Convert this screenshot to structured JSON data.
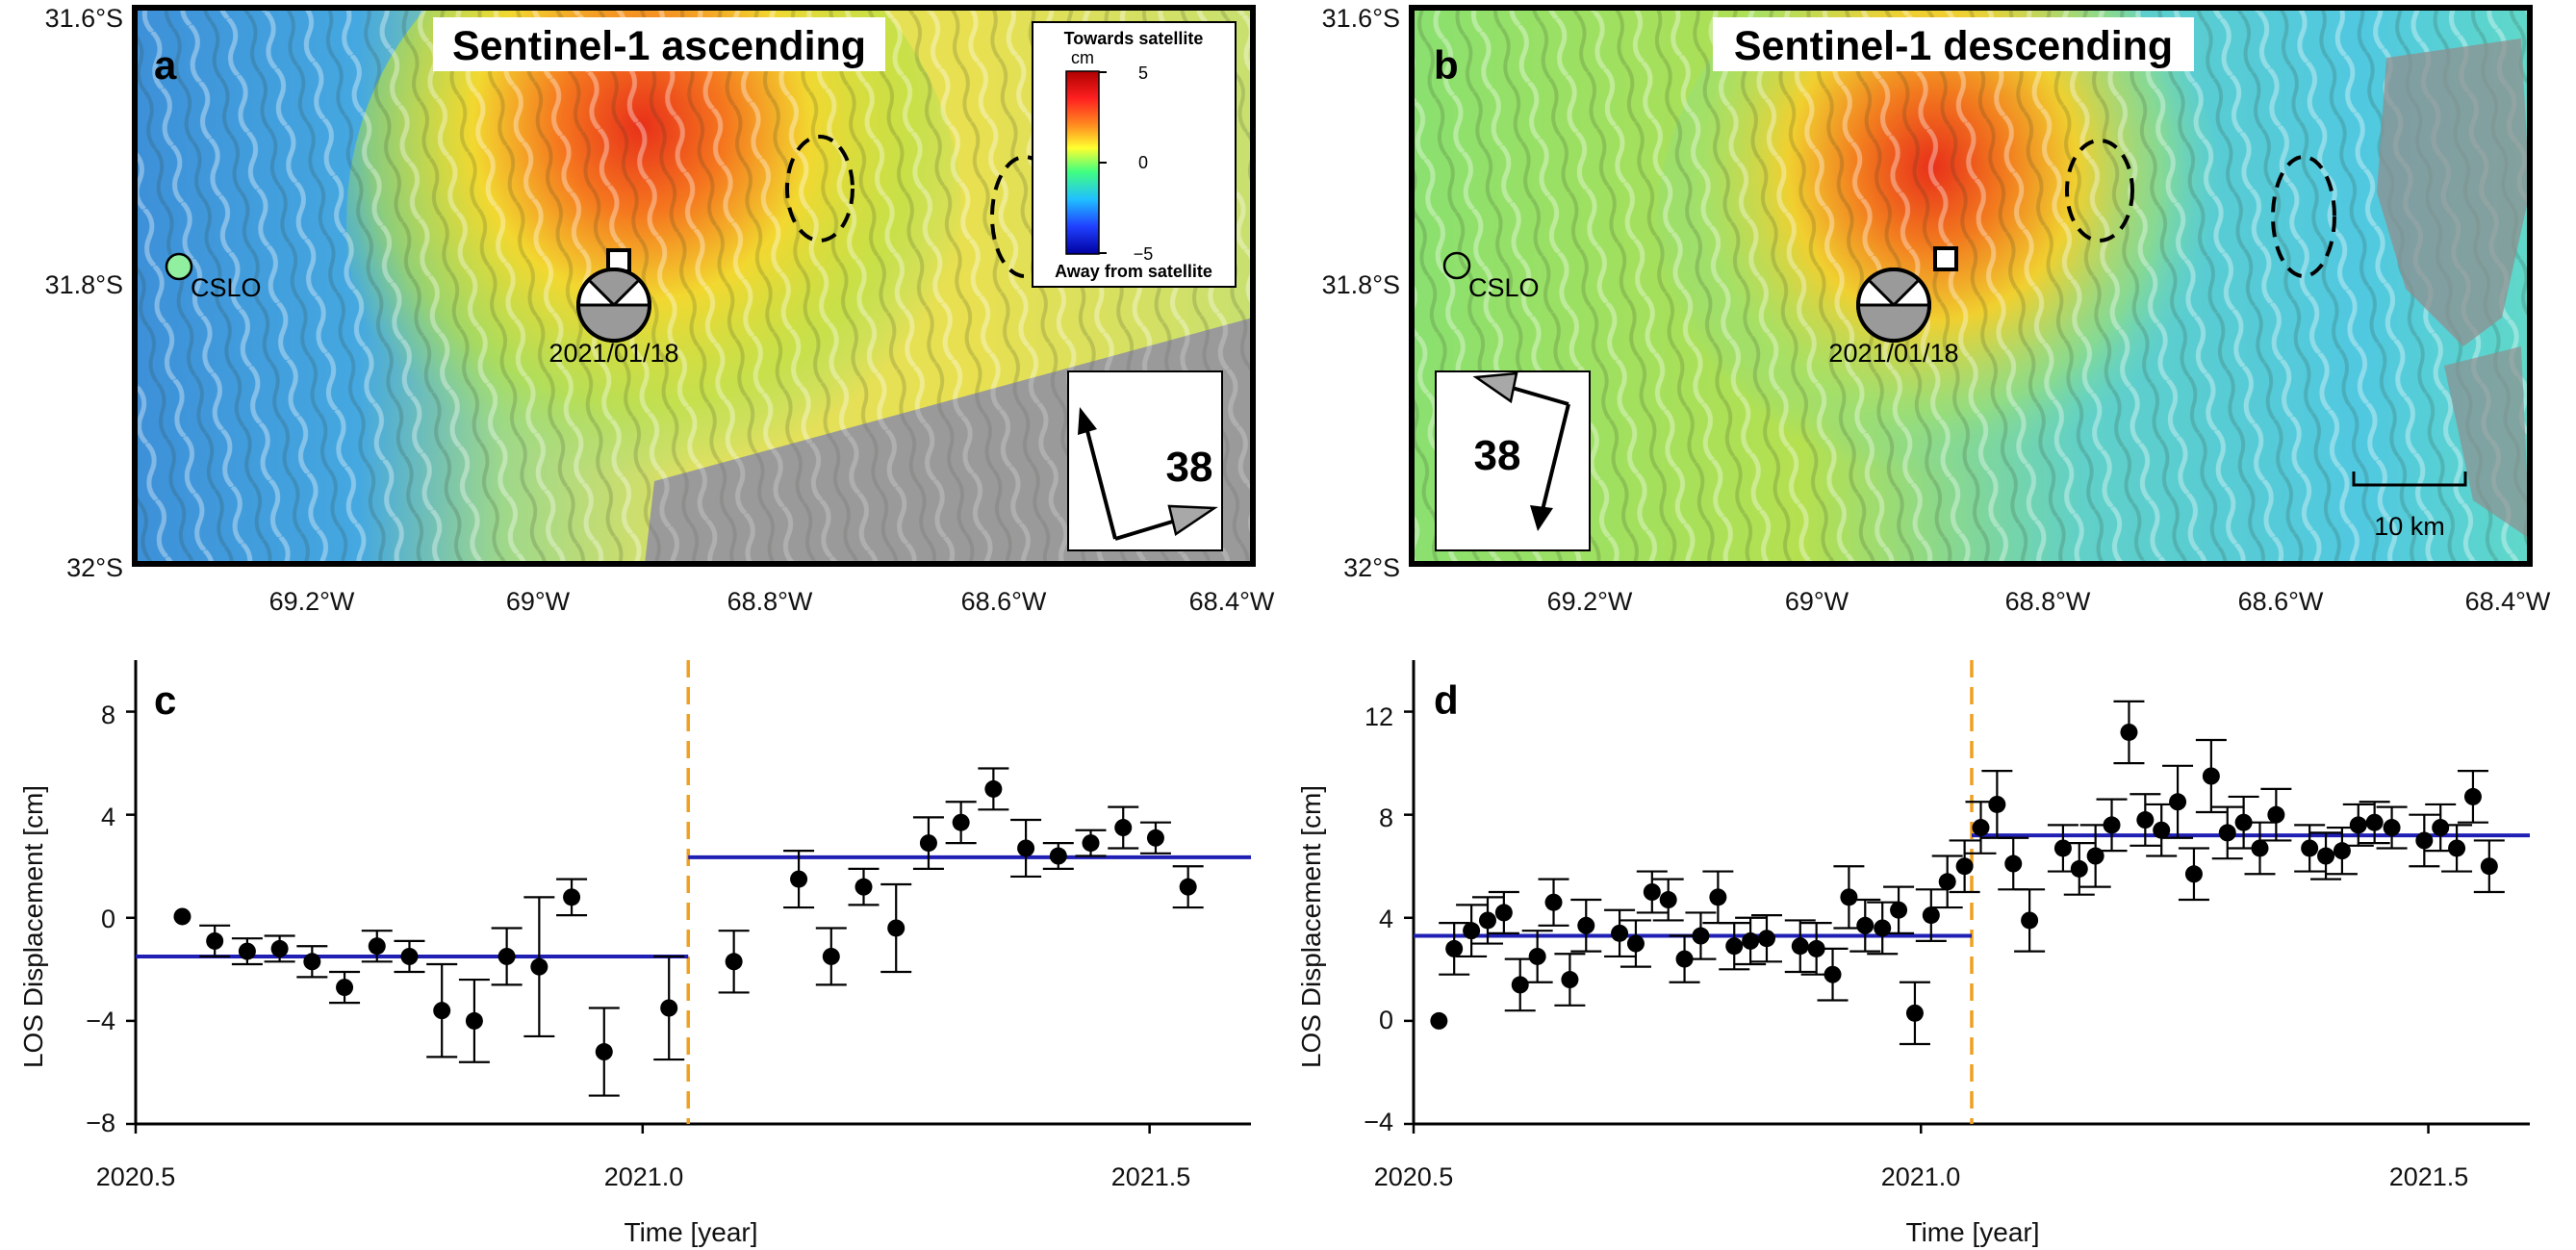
{
  "maps": [
    {
      "letter": "a",
      "title": "Sentinel-1 ascending",
      "station_label": "CSLO",
      "event_date": "2021/01/18",
      "heading_angle": "38",
      "lat_ticks": [
        "31.6°S",
        "31.8°S",
        "32°S"
      ],
      "lon_ticks": [
        "69.2°W",
        "69°W",
        "68.8°W",
        "68.6°W",
        "68.4°W"
      ],
      "colorbar": {
        "top_label": "Towards satellite",
        "unit": "cm",
        "bottom_label": "Away from satellite",
        "ticks": [
          "5",
          "0",
          "−5"
        ]
      }
    },
    {
      "letter": "b",
      "title": "Sentinel-1 descending",
      "station_label": "CSLO",
      "event_date": "2021/01/18",
      "heading_angle": "38",
      "lat_ticks": [
        "31.6°S",
        "31.8°S",
        "32°S"
      ],
      "lon_ticks": [
        "69.2°W",
        "69°W",
        "68.8°W",
        "68.6°W",
        "68.4°W"
      ],
      "scale_bar_label": "10 km"
    }
  ],
  "chart_data": [
    {
      "type": "scatter",
      "panel": "c",
      "xlabel": "Time [year]",
      "ylabel": "LOS Displacement [cm]",
      "xlim": [
        2020.5,
        2021.6
      ],
      "ylim": [
        -8,
        10
      ],
      "xticks": [
        "2020.5",
        "2021.0",
        "2021.5"
      ],
      "yticks": [
        "−8",
        "−4",
        "0",
        "4",
        "8"
      ],
      "event_time": 2021.045,
      "colors": {
        "points": "#000000",
        "fit": "#1f1fb4",
        "event": "#f0a020"
      },
      "points": [
        {
          "x": 2020.546,
          "y": 0.05,
          "err": 0
        },
        {
          "x": 2020.578,
          "y": -0.9,
          "err": 0.6
        },
        {
          "x": 2020.61,
          "y": -1.3,
          "err": 0.5
        },
        {
          "x": 2020.642,
          "y": -1.2,
          "err": 0.5
        },
        {
          "x": 2020.674,
          "y": -1.7,
          "err": 0.6
        },
        {
          "x": 2020.706,
          "y": -2.7,
          "err": 0.6
        },
        {
          "x": 2020.738,
          "y": -1.1,
          "err": 0.6
        },
        {
          "x": 2020.77,
          "y": -1.5,
          "err": 0.6
        },
        {
          "x": 2020.802,
          "y": -3.6,
          "err": 1.8
        },
        {
          "x": 2020.834,
          "y": -4.0,
          "err": 1.6
        },
        {
          "x": 2020.866,
          "y": -1.5,
          "err": 1.1
        },
        {
          "x": 2020.898,
          "y": -1.9,
          "err": 2.7
        },
        {
          "x": 2020.93,
          "y": 0.8,
          "err": 0.7
        },
        {
          "x": 2020.962,
          "y": -5.2,
          "err": 1.7
        },
        {
          "x": 2021.026,
          "y": -3.5,
          "err": 2.0
        },
        {
          "x": 2021.09,
          "y": -1.7,
          "err": 1.2
        },
        {
          "x": 2021.154,
          "y": 1.5,
          "err": 1.1
        },
        {
          "x": 2021.186,
          "y": -1.5,
          "err": 1.1
        },
        {
          "x": 2021.218,
          "y": 1.2,
          "err": 0.7
        },
        {
          "x": 2021.25,
          "y": -0.4,
          "err": 1.7
        },
        {
          "x": 2021.282,
          "y": 2.9,
          "err": 1.0
        },
        {
          "x": 2021.314,
          "y": 3.7,
          "err": 0.8
        },
        {
          "x": 2021.346,
          "y": 5.0,
          "err": 0.8
        },
        {
          "x": 2021.378,
          "y": 2.7,
          "err": 1.1
        },
        {
          "x": 2021.41,
          "y": 2.4,
          "err": 0.5
        },
        {
          "x": 2021.442,
          "y": 2.9,
          "err": 0.5
        },
        {
          "x": 2021.474,
          "y": 3.5,
          "err": 0.8
        },
        {
          "x": 2021.506,
          "y": 3.1,
          "err": 0.6
        },
        {
          "x": 2021.538,
          "y": 1.2,
          "err": 0.8
        }
      ],
      "fits": [
        {
          "x0": 2020.5,
          "x1": 2021.045,
          "y": -1.5
        },
        {
          "x0": 2021.045,
          "x1": 2021.6,
          "y": 2.35
        }
      ]
    },
    {
      "type": "scatter",
      "panel": "d",
      "xlabel": "Time [year]",
      "ylabel": "LOS Displacement [cm]",
      "xlim": [
        2020.5,
        2021.6
      ],
      "ylim": [
        -4,
        14
      ],
      "xticks": [
        "2020.5",
        "2021.0",
        "2021.5"
      ],
      "yticks": [
        "−4",
        "0",
        "4",
        "8",
        "12"
      ],
      "event_time": 2021.05,
      "colors": {
        "points": "#000000",
        "fit": "#1f1fb4",
        "event": "#f0a020"
      },
      "points": [
        {
          "x": 2020.525,
          "y": 0.0,
          "err": 0
        },
        {
          "x": 2020.54,
          "y": 2.8,
          "err": 1.0
        },
        {
          "x": 2020.557,
          "y": 3.5,
          "err": 1.0
        },
        {
          "x": 2020.573,
          "y": 3.9,
          "err": 0.9
        },
        {
          "x": 2020.589,
          "y": 4.2,
          "err": 0.8
        },
        {
          "x": 2020.605,
          "y": 1.4,
          "err": 1.0
        },
        {
          "x": 2020.622,
          "y": 2.5,
          "err": 1.0
        },
        {
          "x": 2020.638,
          "y": 4.6,
          "err": 0.9
        },
        {
          "x": 2020.654,
          "y": 1.6,
          "err": 1.0
        },
        {
          "x": 2020.67,
          "y": 3.7,
          "err": 1.0
        },
        {
          "x": 2020.703,
          "y": 3.4,
          "err": 0.9
        },
        {
          "x": 2020.719,
          "y": 3.0,
          "err": 0.9
        },
        {
          "x": 2020.735,
          "y": 5.0,
          "err": 0.8
        },
        {
          "x": 2020.751,
          "y": 4.7,
          "err": 0.8
        },
        {
          "x": 2020.767,
          "y": 2.4,
          "err": 0.9
        },
        {
          "x": 2020.783,
          "y": 3.3,
          "err": 0.9
        },
        {
          "x": 2020.8,
          "y": 4.8,
          "err": 1.0
        },
        {
          "x": 2020.816,
          "y": 2.9,
          "err": 0.9
        },
        {
          "x": 2020.832,
          "y": 3.1,
          "err": 0.9
        },
        {
          "x": 2020.848,
          "y": 3.2,
          "err": 0.9
        },
        {
          "x": 2020.881,
          "y": 2.9,
          "err": 1.0
        },
        {
          "x": 2020.897,
          "y": 2.8,
          "err": 1.0
        },
        {
          "x": 2020.913,
          "y": 1.8,
          "err": 1.0
        },
        {
          "x": 2020.929,
          "y": 4.8,
          "err": 1.2
        },
        {
          "x": 2020.945,
          "y": 3.7,
          "err": 1.0
        },
        {
          "x": 2020.962,
          "y": 3.6,
          "err": 1.0
        },
        {
          "x": 2020.978,
          "y": 4.3,
          "err": 0.9
        },
        {
          "x": 2020.994,
          "y": 0.3,
          "err": 1.2
        },
        {
          "x": 2021.01,
          "y": 4.1,
          "err": 1.0
        },
        {
          "x": 2021.026,
          "y": 5.4,
          "err": 1.0
        },
        {
          "x": 2021.043,
          "y": 6.0,
          "err": 1.0
        },
        {
          "x": 2021.059,
          "y": 7.5,
          "err": 1.0
        },
        {
          "x": 2021.075,
          "y": 8.4,
          "err": 1.3
        },
        {
          "x": 2021.091,
          "y": 6.1,
          "err": 1.0
        },
        {
          "x": 2021.107,
          "y": 3.9,
          "err": 1.2
        },
        {
          "x": 2021.14,
          "y": 6.7,
          "err": 0.9
        },
        {
          "x": 2021.156,
          "y": 5.9,
          "err": 1.0
        },
        {
          "x": 2021.172,
          "y": 6.4,
          "err": 1.2
        },
        {
          "x": 2021.188,
          "y": 7.6,
          "err": 1.0
        },
        {
          "x": 2021.205,
          "y": 11.2,
          "err": 1.2
        },
        {
          "x": 2021.221,
          "y": 7.8,
          "err": 1.0
        },
        {
          "x": 2021.237,
          "y": 7.4,
          "err": 1.0
        },
        {
          "x": 2021.253,
          "y": 8.5,
          "err": 1.4
        },
        {
          "x": 2021.269,
          "y": 5.7,
          "err": 1.0
        },
        {
          "x": 2021.286,
          "y": 9.5,
          "err": 1.4
        },
        {
          "x": 2021.302,
          "y": 7.3,
          "err": 1.0
        },
        {
          "x": 2021.318,
          "y": 7.7,
          "err": 1.0
        },
        {
          "x": 2021.334,
          "y": 6.7,
          "err": 1.0
        },
        {
          "x": 2021.35,
          "y": 8.0,
          "err": 1.0
        },
        {
          "x": 2021.383,
          "y": 6.7,
          "err": 0.9
        },
        {
          "x": 2021.399,
          "y": 6.4,
          "err": 0.9
        },
        {
          "x": 2021.415,
          "y": 6.6,
          "err": 0.9
        },
        {
          "x": 2021.431,
          "y": 7.6,
          "err": 0.8
        },
        {
          "x": 2021.447,
          "y": 7.7,
          "err": 0.8
        },
        {
          "x": 2021.464,
          "y": 7.5,
          "err": 0.8
        },
        {
          "x": 2021.496,
          "y": 7.0,
          "err": 1.0
        },
        {
          "x": 2021.512,
          "y": 7.5,
          "err": 0.9
        },
        {
          "x": 2021.528,
          "y": 6.7,
          "err": 0.9
        },
        {
          "x": 2021.544,
          "y": 8.7,
          "err": 1.0
        },
        {
          "x": 2021.56,
          "y": 6.0,
          "err": 1.0
        }
      ],
      "fits": [
        {
          "x0": 2020.5,
          "x1": 2021.05,
          "y": 3.3
        },
        {
          "x0": 2021.05,
          "x1": 2021.6,
          "y": 7.2
        }
      ]
    }
  ]
}
